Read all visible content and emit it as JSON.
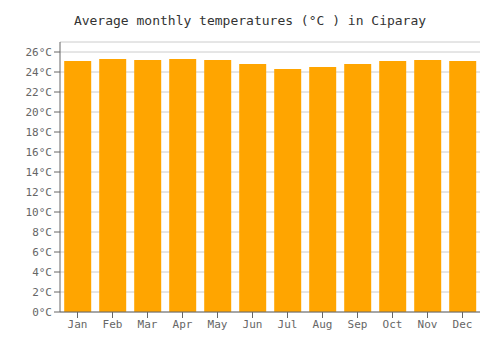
{
  "chart_data": {
    "type": "bar",
    "title": "Average monthly temperatures (°C ) in Ciparay",
    "categories": [
      "Jan",
      "Feb",
      "Mar",
      "Apr",
      "May",
      "Jun",
      "Jul",
      "Aug",
      "Sep",
      "Oct",
      "Nov",
      "Dec"
    ],
    "values": [
      25.1,
      25.3,
      25.2,
      25.3,
      25.2,
      24.8,
      24.3,
      24.5,
      24.8,
      25.1,
      25.2,
      25.1
    ],
    "color": "#FFA500",
    "ylim": [
      0,
      27
    ],
    "yticks": [
      {
        "value": 0,
        "label": "0°C"
      },
      {
        "value": 2,
        "label": "2°C"
      },
      {
        "value": 4,
        "label": "4°C"
      },
      {
        "value": 6,
        "label": "6°C"
      },
      {
        "value": 8,
        "label": "8°C"
      },
      {
        "value": 10,
        "label": "10°C"
      },
      {
        "value": 12,
        "label": "12°C"
      },
      {
        "value": 14,
        "label": "14°C"
      },
      {
        "value": 16,
        "label": "16°C"
      },
      {
        "value": 18,
        "label": "18°C"
      },
      {
        "value": 20,
        "label": "20°C"
      },
      {
        "value": 22,
        "label": "22°C"
      },
      {
        "value": 24,
        "label": "24°C"
      },
      {
        "value": 26,
        "label": "26°C"
      }
    ],
    "grid": true
  }
}
